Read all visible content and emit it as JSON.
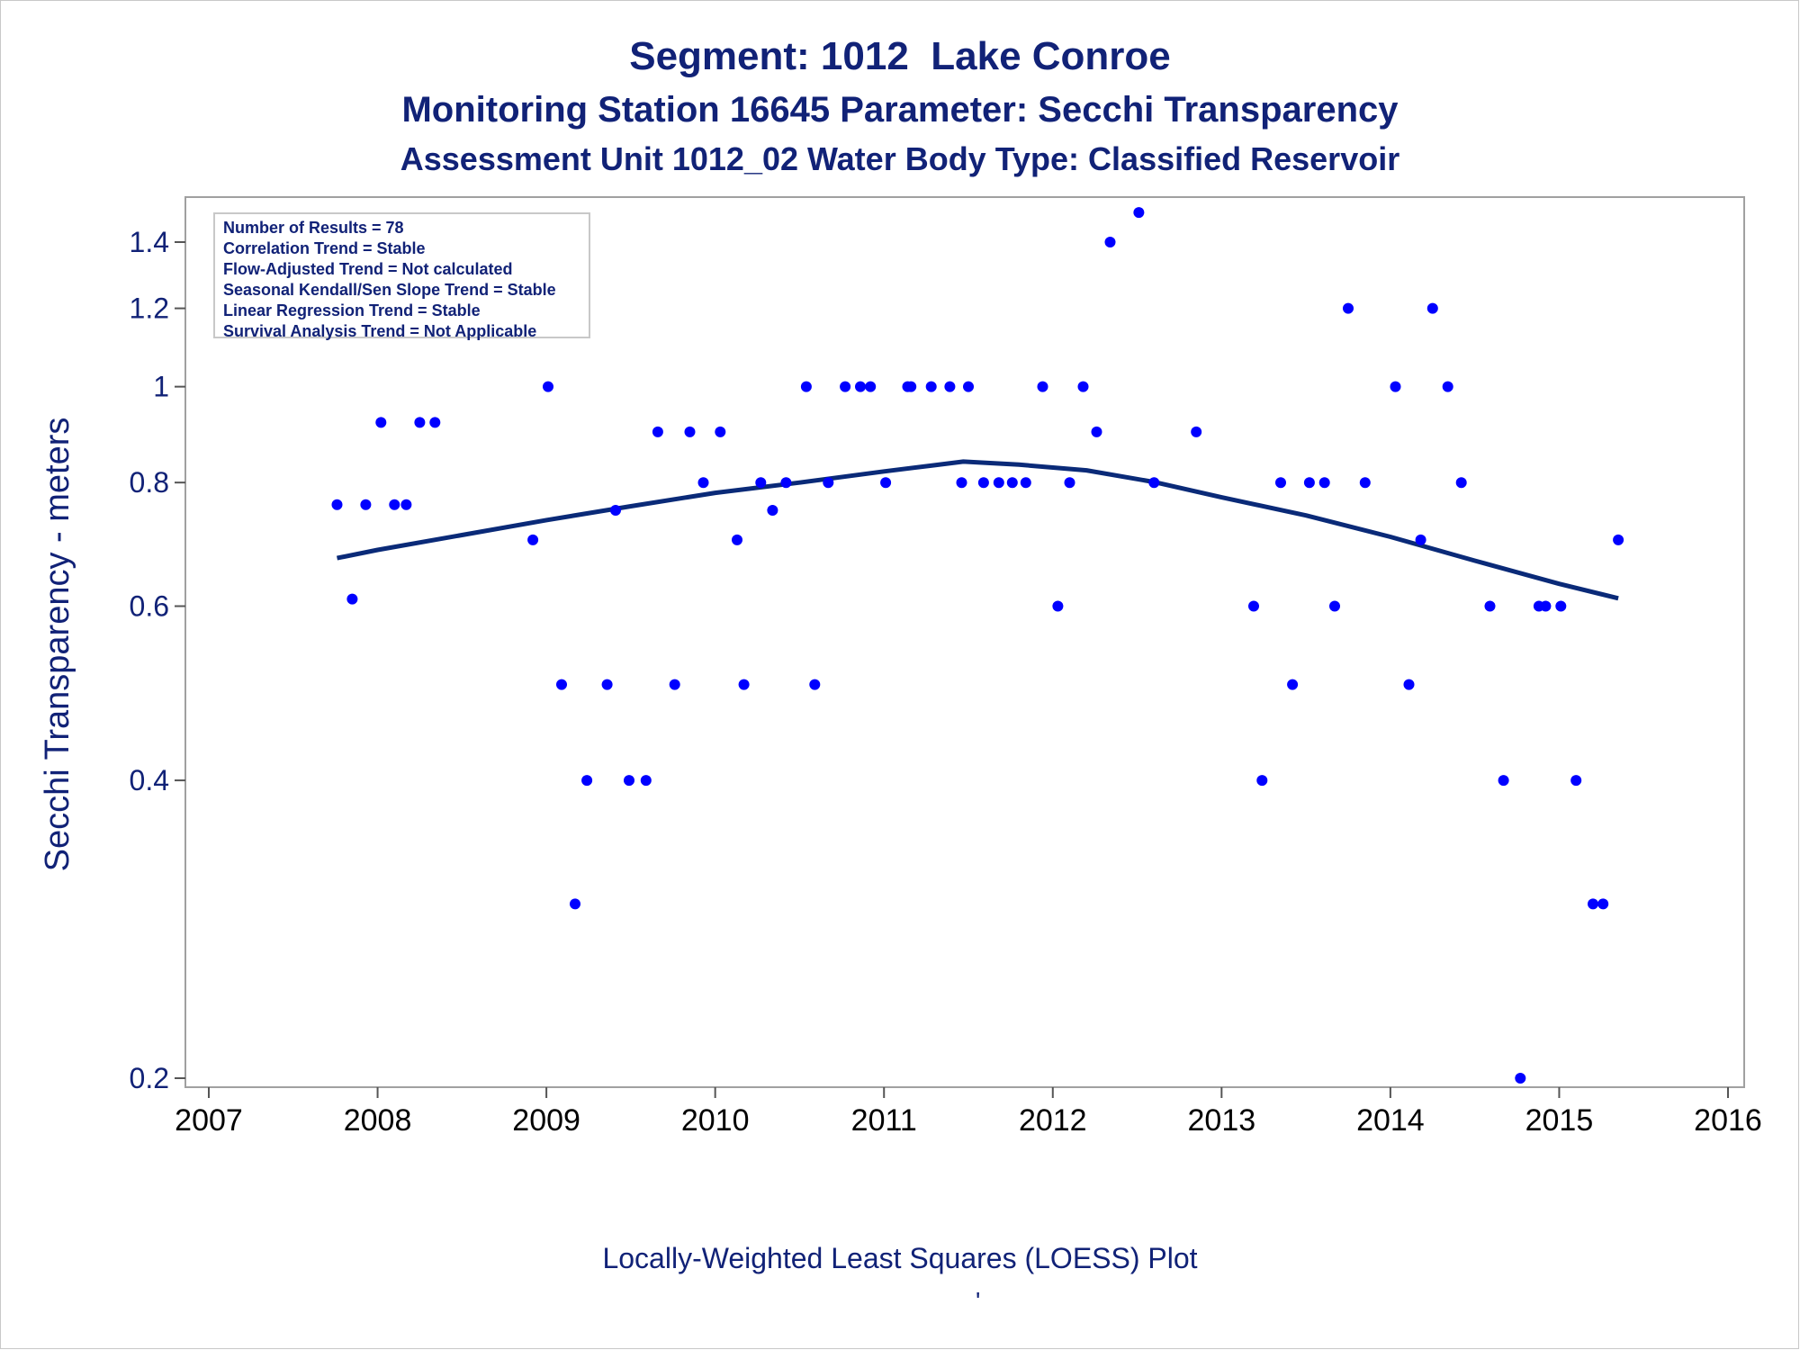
{
  "title": "Segment: 1012  Lake Conroe",
  "subtitle1": "Monitoring Station 16645 Parameter: Secchi Transparency",
  "subtitle2": "Assessment Unit 1012_02   Water Body Type: Classified Reservoir",
  "footnote": "Locally-Weighted Least Squares (LOESS) Plot",
  "footnote_mark": "'",
  "legend": [
    "Number of Results = 78",
    "Correlation Trend = Stable",
    "Flow-Adjusted Trend = Not calculated",
    "Seasonal Kendall/Sen Slope Trend = Stable",
    "Linear Regression Trend = Stable",
    "Survival Analysis Trend = Not Applicable"
  ],
  "colors": {
    "text": "#112277",
    "points": "#0000ff",
    "line": "#0a2a78",
    "frame": "#a0a0a0"
  },
  "chart_data": {
    "type": "scatter",
    "title": "Segment: 1012  Lake Conroe",
    "ylabel": "Secchi Transparency - meters",
    "xlabel": "",
    "xlim": [
      2007,
      2016
    ],
    "ylim": [
      0.19,
      1.55
    ],
    "y_scale": "log",
    "x_ticks": [
      "2007",
      "2008",
      "2009",
      "2010",
      "2011",
      "2012",
      "2013",
      "2014",
      "2015",
      "2016"
    ],
    "y_ticks": [
      "0.2",
      "0.4",
      "0.6",
      "0.8",
      "1",
      "1.2",
      "1.4"
    ],
    "series": [
      {
        "type": "scatter",
        "points": [
          [
            2007.76,
            0.76
          ],
          [
            2007.85,
            0.61
          ],
          [
            2007.93,
            0.76
          ],
          [
            2008.02,
            0.92
          ],
          [
            2008.1,
            0.76
          ],
          [
            2008.17,
            0.76
          ],
          [
            2008.25,
            0.92
          ],
          [
            2008.34,
            0.92
          ],
          [
            2008.92,
            0.7
          ],
          [
            2009.01,
            1.0
          ],
          [
            2009.09,
            0.5
          ],
          [
            2009.17,
            0.3
          ],
          [
            2009.24,
            0.4
          ],
          [
            2009.36,
            0.5
          ],
          [
            2009.41,
            0.75
          ],
          [
            2009.49,
            0.4
          ],
          [
            2009.59,
            0.4
          ],
          [
            2009.66,
            0.9
          ],
          [
            2009.76,
            0.5
          ],
          [
            2009.85,
            0.9
          ],
          [
            2009.93,
            0.8
          ],
          [
            2010.03,
            0.9
          ],
          [
            2010.13,
            0.7
          ],
          [
            2010.17,
            0.5
          ],
          [
            2010.27,
            0.8
          ],
          [
            2010.34,
            0.75
          ],
          [
            2010.42,
            0.8
          ],
          [
            2010.54,
            1.0
          ],
          [
            2010.59,
            0.5
          ],
          [
            2010.67,
            0.8
          ],
          [
            2010.77,
            1.0
          ],
          [
            2010.86,
            1.0
          ],
          [
            2010.92,
            1.0
          ],
          [
            2011.01,
            0.8
          ],
          [
            2011.14,
            1.0
          ],
          [
            2011.16,
            1.0
          ],
          [
            2011.28,
            1.0
          ],
          [
            2011.39,
            1.0
          ],
          [
            2011.46,
            0.8
          ],
          [
            2011.5,
            1.0
          ],
          [
            2011.59,
            0.8
          ],
          [
            2011.68,
            0.8
          ],
          [
            2011.76,
            0.8
          ],
          [
            2011.84,
            0.8
          ],
          [
            2011.94,
            1.0
          ],
          [
            2012.03,
            0.6
          ],
          [
            2012.1,
            0.8
          ],
          [
            2012.18,
            1.0
          ],
          [
            2012.26,
            0.9
          ],
          [
            2012.34,
            1.4
          ],
          [
            2012.51,
            1.5
          ],
          [
            2012.6,
            0.8
          ],
          [
            2012.85,
            0.9
          ],
          [
            2013.19,
            0.6
          ],
          [
            2013.24,
            0.4
          ],
          [
            2013.35,
            0.8
          ],
          [
            2013.42,
            0.5
          ],
          [
            2013.52,
            0.8
          ],
          [
            2013.61,
            0.8
          ],
          [
            2013.67,
            0.6
          ],
          [
            2013.75,
            1.2
          ],
          [
            2013.85,
            0.8
          ],
          [
            2014.03,
            1.0
          ],
          [
            2014.11,
            0.5
          ],
          [
            2014.18,
            0.7
          ],
          [
            2014.25,
            1.2
          ],
          [
            2014.34,
            1.0
          ],
          [
            2014.42,
            0.8
          ],
          [
            2014.59,
            0.6
          ],
          [
            2014.67,
            0.4
          ],
          [
            2014.77,
            0.2
          ],
          [
            2014.88,
            0.6
          ],
          [
            2014.92,
            0.6
          ],
          [
            2015.01,
            0.6
          ],
          [
            2015.1,
            0.4
          ],
          [
            2015.2,
            0.3
          ],
          [
            2015.26,
            0.3
          ],
          [
            2015.35,
            0.7
          ]
        ]
      },
      {
        "type": "line",
        "points": [
          [
            2007.76,
            0.671
          ],
          [
            2008.0,
            0.684
          ],
          [
            2008.5,
            0.708
          ],
          [
            2009.0,
            0.733
          ],
          [
            2009.5,
            0.757
          ],
          [
            2010.0,
            0.781
          ],
          [
            2010.5,
            0.8
          ],
          [
            2011.0,
            0.821
          ],
          [
            2011.3,
            0.833
          ],
          [
            2011.47,
            0.84
          ],
          [
            2011.8,
            0.834
          ],
          [
            2012.2,
            0.823
          ],
          [
            2012.6,
            0.801
          ],
          [
            2013.0,
            0.773
          ],
          [
            2013.5,
            0.741
          ],
          [
            2014.0,
            0.705
          ],
          [
            2014.5,
            0.667
          ],
          [
            2015.0,
            0.632
          ],
          [
            2015.35,
            0.611
          ]
        ]
      }
    ]
  }
}
